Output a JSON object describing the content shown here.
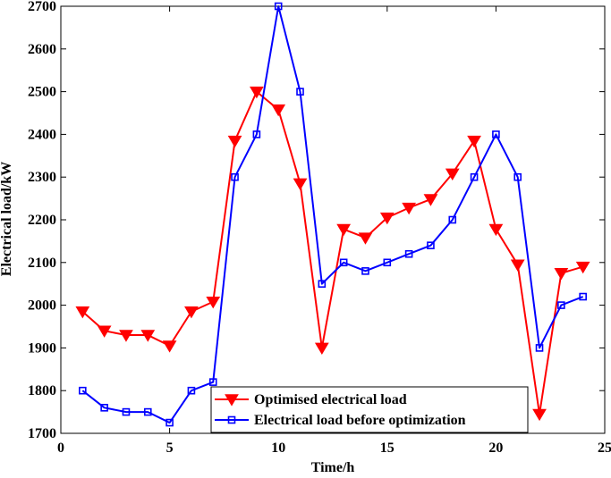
{
  "chart_data": {
    "type": "line",
    "xlabel": "Time/h",
    "ylabel": "Electrical load/kW",
    "xlim": [
      0,
      25
    ],
    "ylim": [
      1700,
      2700
    ],
    "x_ticks": [
      0,
      5,
      10,
      15,
      20,
      25
    ],
    "y_ticks": [
      1700,
      1800,
      1900,
      2000,
      2100,
      2200,
      2300,
      2400,
      2500,
      2600,
      2700
    ],
    "x_tick_labels": [
      "0",
      "5",
      "10",
      "15",
      "20",
      "25"
    ],
    "y_tick_labels": [
      "1700",
      "1800",
      "1900",
      "2000",
      "2100",
      "2200",
      "2300",
      "2400",
      "2500",
      "2600",
      "2700"
    ],
    "grid": false,
    "legend_position": "bottom-center",
    "x": [
      1,
      2,
      3,
      4,
      5,
      6,
      7,
      8,
      9,
      10,
      11,
      12,
      13,
      14,
      15,
      16,
      17,
      18,
      19,
      20,
      21,
      22,
      23,
      24
    ],
    "series": [
      {
        "name": "Optimised electrical load",
        "color": "#ff0000",
        "marker": "triangle-down",
        "values": [
          1985,
          1940,
          1930,
          1930,
          1905,
          1985,
          2008,
          2385,
          2500,
          2458,
          2285,
          1900,
          2178,
          2158,
          2205,
          2228,
          2248,
          2308,
          2385,
          2178,
          2095,
          1745,
          2075,
          2090
        ]
      },
      {
        "name": "Electrical load before optimization",
        "color": "#0000ff",
        "marker": "square",
        "values": [
          1800,
          1760,
          1750,
          1750,
          1725,
          1800,
          1820,
          2300,
          2400,
          2700,
          2500,
          2050,
          2100,
          2080,
          2100,
          2120,
          2140,
          2200,
          2300,
          2400,
          2300,
          1900,
          2000,
          2020
        ]
      }
    ]
  }
}
